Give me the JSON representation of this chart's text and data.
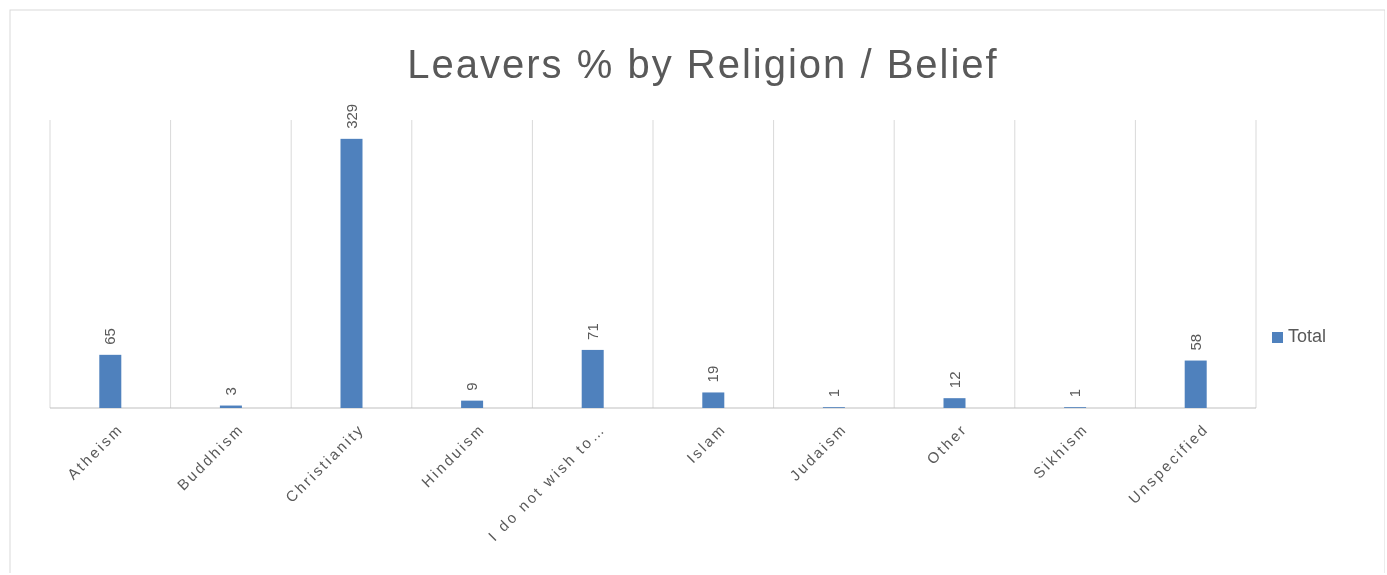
{
  "chart_data": {
    "type": "bar",
    "title": "Leavers % by Religion / Belief",
    "categories": [
      "Atheism",
      "Buddhism",
      "Christianity",
      "Hinduism",
      "I do not wish to…",
      "Islam",
      "Judaism",
      "Other",
      "Sikhism",
      "Unspecified"
    ],
    "series": [
      {
        "name": "Total",
        "color": "#4f81bd",
        "values": [
          65,
          3,
          329,
          9,
          71,
          19,
          1,
          12,
          1,
          58
        ]
      }
    ],
    "data_labels": true,
    "grid": "x",
    "legend": "right"
  }
}
